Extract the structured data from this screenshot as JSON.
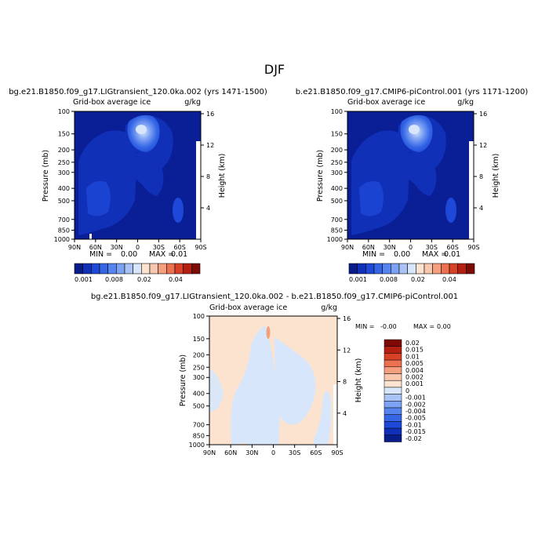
{
  "page": {
    "title": "DJF"
  },
  "colors": {
    "background": "#0a1f96",
    "palette_top": [
      "#081d8a",
      "#1030b8",
      "#1e48d8",
      "#3566e6",
      "#5584ef",
      "#7ea2f3",
      "#a9c3f6",
      "#d7e6fa",
      "#fbe3d0",
      "#f8c7ad",
      "#f4a07e",
      "#ec7150",
      "#d94126",
      "#b31f10",
      "#7e0a06"
    ],
    "palette_diff": [
      "#7e0a06",
      "#b31f10",
      "#d94126",
      "#ec7150",
      "#f4a07e",
      "#f8c7ad",
      "#fbe3d0",
      "#d7e6fa",
      "#a9c3f6",
      "#7ea2f3",
      "#5584ef",
      "#3566e6",
      "#1e48d8",
      "#1030b8",
      "#081d8a"
    ]
  },
  "panels": [
    {
      "id": "left",
      "run_title": "bg.e21.B1850.f09_g17.LIGtransient_120.0ka.002 (yrs 1471-1500)",
      "var_label": "Grid-box average ice",
      "units": "g/kg",
      "min_label": "MIN =",
      "min_value": "0.00",
      "max_label": "MAX =",
      "max_value": "0.01"
    },
    {
      "id": "right",
      "run_title": "b.e21.B1850.f09_g17.CMIP6-piControl.001 (yrs 1171-1200)",
      "var_label": "Grid-box average ice",
      "units": "g/kg",
      "min_label": "MIN =",
      "min_value": "0.00",
      "max_label": "MAX =",
      "max_value": "0.01"
    },
    {
      "id": "diff",
      "run_title": "bg.e21.B1850.f09_g17.LIGtransient_120.0ka.002 - b.e21.B1850.f09_g17.CMIP6-piControl.001",
      "var_label": "Grid-box average ice",
      "units": "g/kg",
      "min_label": "MIN =",
      "min_value": "-0.00",
      "max_label": "MAX =",
      "max_value": "0.00"
    }
  ],
  "axes": {
    "ylabel": "Pressure (mb)",
    "y2label": "Height (km)",
    "x_ticks": [
      "90N",
      "60N",
      "30N",
      "0",
      "30S",
      "60S",
      "90S"
    ],
    "p_ticks": [
      "100",
      "150",
      "200",
      "250",
      "300",
      "400",
      "500",
      "700",
      "850",
      "1000"
    ],
    "h_ticks": [
      "16",
      "12",
      "8",
      "4"
    ]
  },
  "colorbars": {
    "top_labels": [
      "0.001",
      "0.008",
      "0.02",
      "0.04"
    ],
    "diff_labels": [
      "0.02",
      "0.015",
      "0.01",
      "0.005",
      "0.004",
      "0.002",
      "0.001",
      "0",
      "-0.001",
      "-0.002",
      "-0.004",
      "-0.005",
      "-0.01",
      "-0.015",
      "-0.02"
    ]
  },
  "chart_data": [
    {
      "type": "heatmap",
      "title": "bg.e21.B1850.f09_g17.LIGtransient_120.0ka.002 (yrs 1471-1500)",
      "xlabel": "",
      "ylabel": "Pressure (mb)",
      "x_categories": [
        "90N",
        "60N",
        "30N",
        "0",
        "30S",
        "60S",
        "90S"
      ],
      "y_pressure_ticks": [
        100,
        150,
        200,
        250,
        300,
        400,
        500,
        700,
        850,
        1000
      ],
      "y_log_scale": true,
      "height_km_ticks": [
        16,
        12,
        8,
        4
      ],
      "colorbar_levels": [
        0.001,
        0.008,
        0.02,
        0.04
      ],
      "summary": {
        "min": 0.0,
        "max": 0.01,
        "units": "g/kg"
      }
    },
    {
      "type": "heatmap",
      "title": "b.e21.B1850.f09_g17.CMIP6-piControl.001 (yrs 1171-1200)",
      "xlabel": "",
      "ylabel": "Pressure (mb)",
      "x_categories": [
        "90N",
        "60N",
        "30N",
        "0",
        "30S",
        "60S",
        "90S"
      ],
      "y_pressure_ticks": [
        100,
        150,
        200,
        250,
        300,
        400,
        500,
        700,
        850,
        1000
      ],
      "y_log_scale": true,
      "height_km_ticks": [
        16,
        12,
        8,
        4
      ],
      "colorbar_levels": [
        0.001,
        0.008,
        0.02,
        0.04
      ],
      "summary": {
        "min": 0.0,
        "max": 0.01,
        "units": "g/kg"
      }
    },
    {
      "type": "heatmap",
      "title": "bg.e21.B1850.f09_g17.LIGtransient_120.0ka.002 - b.e21.B1850.f09_g17.CMIP6-piControl.001",
      "xlabel": "",
      "ylabel": "Pressure (mb)",
      "x_categories": [
        "90N",
        "60N",
        "30N",
        "0",
        "30S",
        "60S",
        "90S"
      ],
      "y_pressure_ticks": [
        100,
        150,
        200,
        250,
        300,
        400,
        500,
        700,
        850,
        1000
      ],
      "y_log_scale": true,
      "height_km_ticks": [
        16,
        12,
        8,
        4
      ],
      "colorbar_levels": [
        0.02,
        0.015,
        0.01,
        0.005,
        0.004,
        0.002,
        0.001,
        0,
        -0.001,
        -0.002,
        -0.004,
        -0.005,
        -0.01,
        -0.015,
        -0.02
      ],
      "summary": {
        "min": -0.0,
        "max": 0.0,
        "units": "g/kg"
      }
    }
  ]
}
